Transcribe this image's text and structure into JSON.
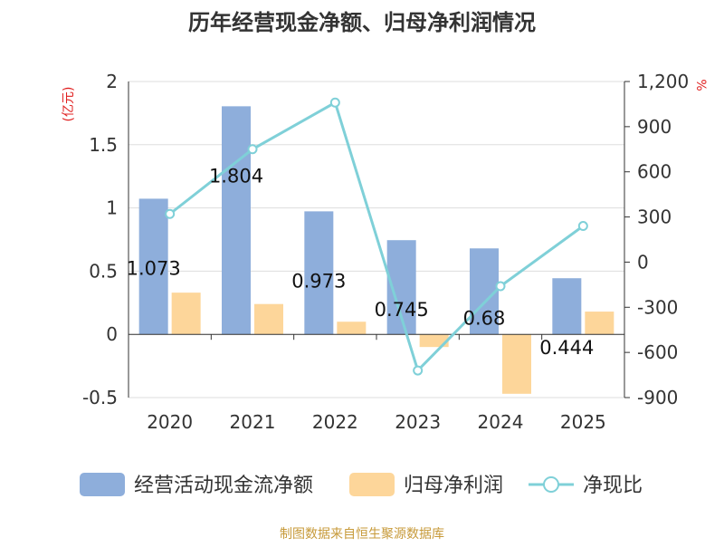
{
  "chart_data": {
    "type": "bar",
    "title": "历年经营现金净额、归母净利润情况",
    "categories": [
      "2020",
      "2021",
      "2022",
      "2023",
      "2024",
      "2025"
    ],
    "left_axis": {
      "unit_label": "(亿元)",
      "range": [
        -0.5,
        2
      ],
      "ticks": [
        -0.5,
        0,
        0.5,
        1,
        1.5,
        2
      ],
      "tick_labels": [
        "-0.5",
        "0",
        "0.5",
        "1",
        "1.5",
        "2"
      ]
    },
    "right_axis": {
      "unit_label": "%",
      "range": [
        -900,
        1200
      ],
      "ticks": [
        -900,
        -600,
        -300,
        0,
        300,
        600,
        900,
        1200
      ],
      "tick_labels": [
        "-900",
        "-600",
        "-300",
        "0",
        "300",
        "600",
        "900",
        "1,200"
      ]
    },
    "series": [
      {
        "name": "经营活动现金流净额",
        "type": "bar",
        "axis": "left",
        "color": "#8eaedb",
        "values": [
          1.073,
          1.804,
          0.973,
          0.745,
          0.68,
          0.444
        ],
        "labels": [
          "1.073",
          "1.804",
          "0.973",
          "0.745",
          "0.68",
          "0.444"
        ]
      },
      {
        "name": "归母净利润",
        "type": "bar",
        "axis": "left",
        "color": "#fdd69a",
        "values": [
          0.33,
          0.24,
          0.1,
          -0.1,
          -0.47,
          0.18
        ]
      },
      {
        "name": "净现比",
        "type": "line",
        "axis": "right",
        "color": "#7fd0d8",
        "values": [
          320,
          750,
          1060,
          -720,
          -160,
          240
        ]
      }
    ],
    "legend_position": "bottom",
    "grid": true,
    "source": "制图数据来自恒生聚源数据库"
  }
}
